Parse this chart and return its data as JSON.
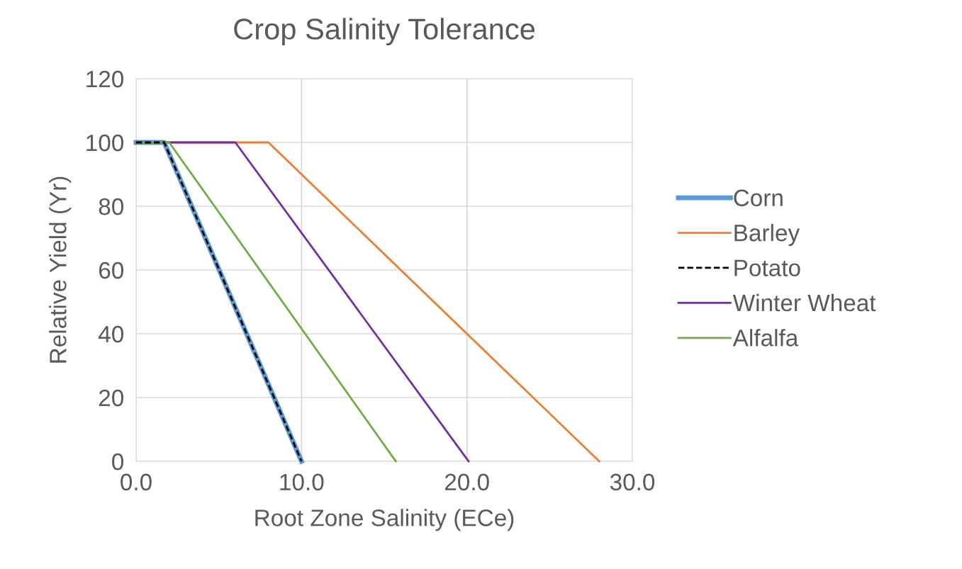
{
  "chart_data": {
    "type": "line",
    "title": "Crop Salinity Tolerance",
    "xlabel": "Root Zone Salinity (ECe)",
    "ylabel": "Relative Yield (Yr)",
    "series": [
      {
        "name": "Corn",
        "color": "#5b9bd5",
        "x": [
          0,
          1.7,
          10.0
        ],
        "values": [
          100,
          100,
          0
        ],
        "line_style": "solid"
      },
      {
        "name": "Barley",
        "color": "#ed7d31",
        "x": [
          0,
          8.0,
          28.0
        ],
        "values": [
          100,
          100,
          0
        ],
        "line_style": "solid"
      },
      {
        "name": "Potato",
        "color": "#000000",
        "x": [
          0,
          1.7,
          10.0
        ],
        "values": [
          100,
          100,
          0
        ],
        "line_style": "dashed"
      },
      {
        "name": "Winter Wheat",
        "color": "#7030a0",
        "x": [
          0,
          6.0,
          20.1
        ],
        "values": [
          100,
          100,
          0
        ],
        "line_style": "solid"
      },
      {
        "name": "Alfalfa",
        "color": "#70ad47",
        "x": [
          0,
          2.0,
          15.7
        ],
        "values": [
          100,
          100,
          0
        ],
        "line_style": "solid"
      }
    ],
    "xlim": [
      0,
      30
    ],
    "xticks": [
      {
        "value": 0,
        "label": "0.0"
      },
      {
        "value": 10,
        "label": "10.0"
      },
      {
        "value": 20,
        "label": "20.0"
      },
      {
        "value": 30,
        "label": "30.0"
      }
    ],
    "ylim": [
      0,
      120
    ],
    "yticks": [
      0,
      20,
      40,
      60,
      80,
      100,
      120
    ],
    "grid": true,
    "legend": "right",
    "marker": "none"
  }
}
